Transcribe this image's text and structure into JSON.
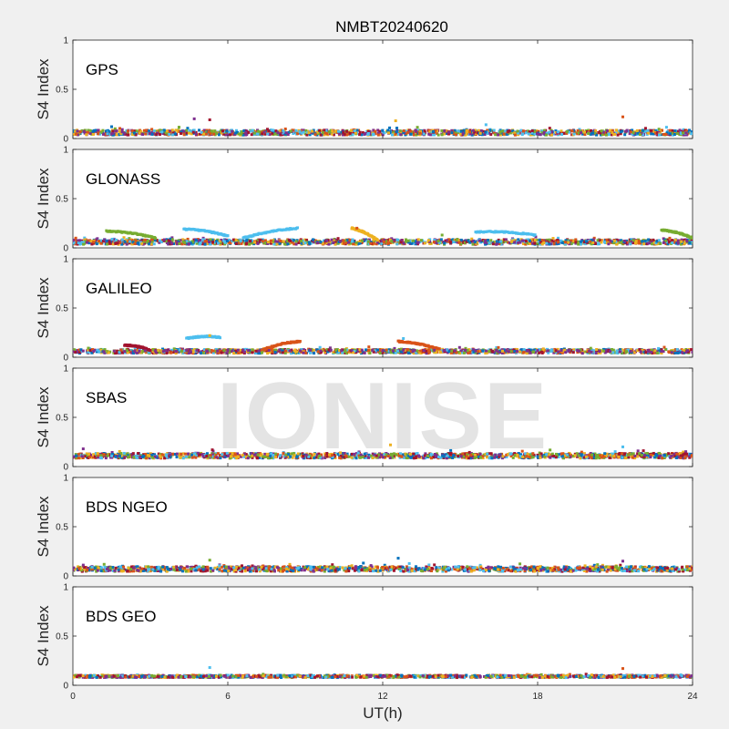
{
  "title": "NMBT20240620",
  "watermark": "IONISE",
  "chart_data": {
    "type": "scatter",
    "title": "NMBT20240620",
    "xlabel": "UT(h)",
    "xlim": [
      0,
      24
    ],
    "xticks": [
      0,
      6,
      12,
      18,
      24
    ],
    "xtick_labels": [
      "0",
      "6",
      "12",
      "18",
      "24"
    ],
    "ylabel": "S4 Index",
    "ylim": [
      0,
      1
    ],
    "yticks": [
      0,
      0.5,
      1
    ],
    "ytick_labels": [
      "0",
      "0.5",
      "1"
    ],
    "grid": false,
    "series_colors": [
      "#0072BD",
      "#D95319",
      "#EDB120",
      "#7E2F8E",
      "#77AC30",
      "#4DBEEE",
      "#A2142F"
    ],
    "panels": [
      {
        "label": "GPS",
        "baseline": 0.06,
        "spread": 0.025,
        "spikes": [
          {
            "x": 1.5,
            "y": 0.12
          },
          {
            "x": 4.7,
            "y": 0.2
          },
          {
            "x": 5.3,
            "y": 0.19
          },
          {
            "x": 12.5,
            "y": 0.18
          },
          {
            "x": 16.0,
            "y": 0.14
          },
          {
            "x": 21.3,
            "y": 0.22
          }
        ],
        "arcs": []
      },
      {
        "label": "GLONASS",
        "baseline": 0.06,
        "spread": 0.025,
        "spikes": [
          {
            "x": 11.0,
            "y": 0.2
          },
          {
            "x": 14.3,
            "y": 0.13
          }
        ],
        "arcs": [
          {
            "x0": 1.3,
            "x1": 3.2,
            "y0": 0.17,
            "y1": 0.1,
            "color": "#77AC30"
          },
          {
            "x0": 4.3,
            "x1": 6.0,
            "y0": 0.19,
            "y1": 0.12,
            "color": "#4DBEEE"
          },
          {
            "x0": 6.6,
            "x1": 8.7,
            "y0": 0.1,
            "y1": 0.2,
            "color": "#4DBEEE"
          },
          {
            "x0": 10.8,
            "x1": 11.8,
            "y0": 0.2,
            "y1": 0.08,
            "color": "#EDB120"
          },
          {
            "x0": 15.6,
            "x1": 17.9,
            "y0": 0.16,
            "y1": 0.13,
            "color": "#4DBEEE"
          },
          {
            "x0": 22.8,
            "x1": 24.0,
            "y0": 0.18,
            "y1": 0.1,
            "color": "#77AC30"
          }
        ]
      },
      {
        "label": "GALILEO",
        "baseline": 0.06,
        "spread": 0.02,
        "spikes": [
          {
            "x": 5.3,
            "y": 0.22
          },
          {
            "x": 12.8,
            "y": 0.19
          }
        ],
        "arcs": [
          {
            "x0": 4.4,
            "x1": 5.7,
            "y0": 0.19,
            "y1": 0.2,
            "color": "#4DBEEE"
          },
          {
            "x0": 7.4,
            "x1": 8.8,
            "y0": 0.08,
            "y1": 0.16,
            "color": "#D95319"
          },
          {
            "x0": 2.0,
            "x1": 3.0,
            "y0": 0.12,
            "y1": 0.07,
            "color": "#A2142F"
          },
          {
            "x0": 12.6,
            "x1": 14.2,
            "y0": 0.16,
            "y1": 0.08,
            "color": "#D95319"
          },
          {
            "x0": 0.0,
            "x1": 24.0,
            "y0": 0.06,
            "y1": 0.05,
            "color": "#7E2F8E"
          }
        ]
      },
      {
        "label": "SBAS",
        "baseline": 0.11,
        "spread": 0.025,
        "spikes": [
          {
            "x": 0.4,
            "y": 0.18
          },
          {
            "x": 5.4,
            "y": 0.17
          },
          {
            "x": 12.3,
            "y": 0.22
          },
          {
            "x": 21.3,
            "y": 0.2
          }
        ],
        "arcs": []
      },
      {
        "label": "BDS NGEO",
        "baseline": 0.07,
        "spread": 0.025,
        "spikes": [
          {
            "x": 5.3,
            "y": 0.16
          },
          {
            "x": 12.6,
            "y": 0.18
          },
          {
            "x": 21.3,
            "y": 0.15
          },
          {
            "x": 23.6,
            "y": 0.09
          }
        ],
        "arcs": []
      },
      {
        "label": "BDS GEO",
        "baseline": 0.09,
        "spread": 0.012,
        "spikes": [
          {
            "x": 5.3,
            "y": 0.18
          },
          {
            "x": 21.3,
            "y": 0.17
          }
        ],
        "arcs": []
      }
    ]
  }
}
